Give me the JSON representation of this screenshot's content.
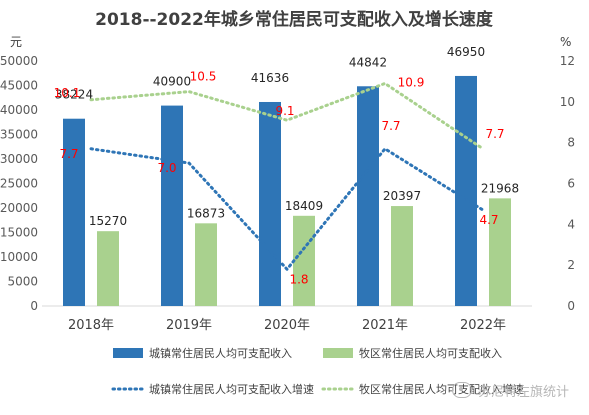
{
  "chart_data": {
    "type": "bar",
    "title": "2018--2022年城乡常住居民可支配收入及增长速度",
    "y_left_label": "元",
    "y_right_label": "%",
    "categories": [
      "2018年",
      "2019年",
      "2020年",
      "2021年",
      "2022年"
    ],
    "ylim_left": [
      0,
      50000
    ],
    "yticks_left": [
      0,
      5000,
      10000,
      15000,
      20000,
      25000,
      30000,
      35000,
      40000,
      45000,
      50000
    ],
    "ylim_right": [
      0,
      12
    ],
    "yticks_right": [
      0,
      2,
      4,
      6,
      8,
      10,
      12
    ],
    "grid": false,
    "legend_position": "bottom",
    "series": [
      {
        "name": "城镇常住居民人均可支配收入",
        "kind": "bar",
        "axis": "left",
        "color": "#2e75b6",
        "values": [
          38224,
          40900,
          41636,
          44842,
          46950
        ],
        "labels": [
          "38224",
          "40900",
          "41636",
          "44842",
          "46950"
        ]
      },
      {
        "name": "牧区常住居民人均可支配收入",
        "kind": "bar",
        "axis": "left",
        "color": "#a9d18e",
        "values": [
          15270,
          16873,
          18409,
          20397,
          21968
        ],
        "labels": [
          "15270",
          "16873",
          "18409",
          "20397",
          "21968"
        ]
      },
      {
        "name": "城镇常住居民人均可支配收入增速",
        "kind": "line",
        "style": "dotted",
        "axis": "right",
        "color": "#2e75b6",
        "values": [
          7.7,
          7.0,
          1.8,
          7.7,
          4.7
        ],
        "labels": [
          "7.7",
          "7.0",
          "1.8",
          "7.7",
          "4.7"
        ]
      },
      {
        "name": "牧区常住居民人均可支配收入增速",
        "kind": "line",
        "style": "dotted",
        "axis": "right",
        "color": "#a9d18e",
        "values": [
          10.1,
          10.5,
          9.1,
          10.9,
          7.7
        ],
        "labels": [
          "10.1",
          "10.5",
          "9.1",
          "10.9",
          "7.7"
        ]
      }
    ],
    "rate_label_color": "#ff0000"
  },
  "watermark": {
    "text": "苏尼特左旗统计"
  }
}
